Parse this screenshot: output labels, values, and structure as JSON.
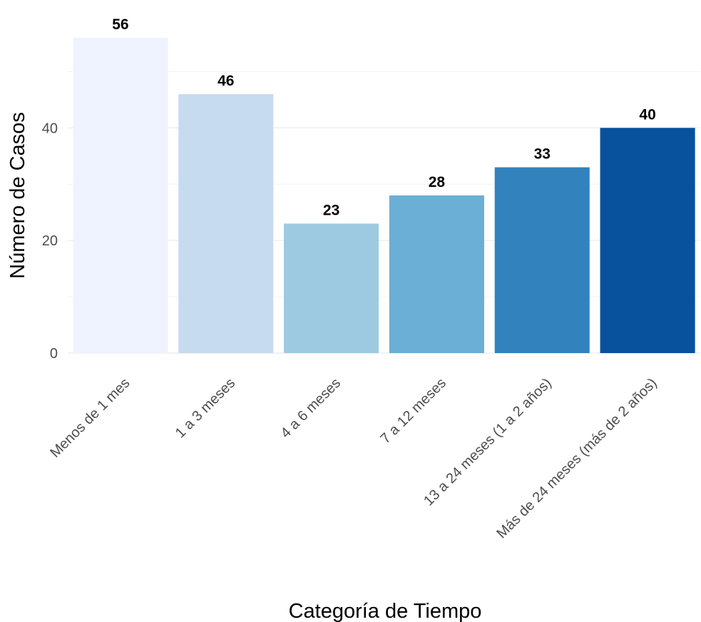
{
  "chart_data": {
    "type": "bar",
    "title": "",
    "xlabel": "Categoría de Tiempo",
    "ylabel": "Número de Casos",
    "categories": [
      "Menos de 1 mes",
      "1 a 3 meses",
      "4 a 6 meses",
      "7 a 12 meses",
      "13 a 24 meses (1 a 2 años)",
      "Más de 24 meses (más de 2 años)"
    ],
    "values": [
      56,
      46,
      23,
      28,
      33,
      40
    ],
    "value_labels": [
      "56",
      "46",
      "23",
      "28",
      "33",
      "40"
    ],
    "colors": [
      "#eff3ff",
      "#c6dbef",
      "#9ecae1",
      "#6baed6",
      "#3182bd",
      "#08519c"
    ],
    "ylim": [
      0,
      56
    ],
    "yticks": [
      0,
      20,
      40
    ],
    "ytick_labels": [
      "0",
      "20",
      "40"
    ],
    "grid": true,
    "legend": "none"
  }
}
